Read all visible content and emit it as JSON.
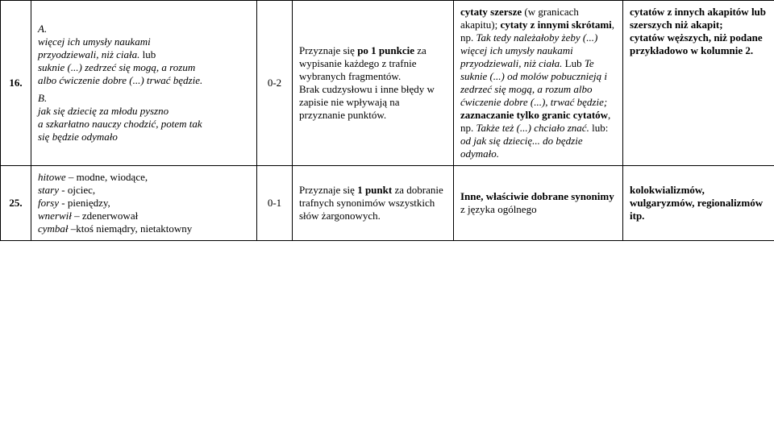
{
  "rows": [
    {
      "num": "16.",
      "main": {
        "a_label": "A.",
        "a_line1": "  więcej ich umysły naukami",
        "a_line2": "przyodziewali, niż ciała.",
        "a_or": " lub",
        "a_line3": "  suknie (...) zedrzeć się mogą, a rozum",
        "a_line4": "albo ćwiczenie dobre (...) trwać będzie.",
        "b_label": "B.",
        "b_line1": " jak się dziecię za młodu pyszno",
        "b_line2": "  a szkarłatno nauczy chodzić, potem tak",
        "b_line3": "się będzie odymało"
      },
      "score": "0-2",
      "rule": {
        "p1a": "Przyznaje się ",
        "p1b": "po 1 punkcie",
        "p1c": " za wypisanie każdego z  trafnie wybranych fragmentów.",
        "p2": "Brak cudzysłowu i inne błędy w zapisie nie wpływają na przyznanie punktów."
      },
      "ctx": {
        "l1a": "cytaty szersze",
        "l1b": " (w granicach akapitu);",
        "l2a": "cytaty z innymi skrótami",
        "l2b": ", np. ",
        "l2c": "Tak tedy należałoby żeby (...) więcej ich umysły naukami przyodziewali, niż ciała.",
        "l2d": " Lub ",
        "l2e": "Te suknie (...) od molów pobucznieją i zedrzeć się mogą, a rozum albo ćwiczenie dobre (...), trwać będzie;",
        "l3a": "zaznaczanie tylko granic cytatów",
        "l3b": ", np. ",
        "l3c": "Także też  (...) chciało znać.",
        "l3d": " lub: ",
        "l3e": "od  jak się dziecię... do będzie odymało."
      },
      "err": {
        "e1": "cytatów z innych akapitów lub szerszych niż akapit;",
        "e2": "cytatów węższych, niż podane przykładowo w kolumnie 2."
      }
    },
    {
      "num": "25.",
      "main": {
        "l1a": "hitowe",
        "l1b": " – modne, wiodące,",
        "l2a": "stary",
        "l2b": " - ojciec,",
        "l3a": "forsy",
        "l3b": " - pieniędzy,",
        "l4a": "wnerwił",
        "l4b": " – zdenerwował",
        "l5a": "cymbał",
        "l5b": " –ktoś niemądry, nietaktowny"
      },
      "score": "0-1",
      "rule": {
        "p1a": "Przyznaje się ",
        "p1b": "1 punkt",
        "p1c": " za dobranie trafnych synonimów wszystkich słów żargonowych."
      },
      "ctx": {
        "l1a": "Inne, właściwie dobrane synonimy",
        "l1b": " z języka ogólnego"
      },
      "err": {
        "e1": "kolokwializmów, wulgaryzmów, regionalizmów itp."
      }
    }
  ]
}
